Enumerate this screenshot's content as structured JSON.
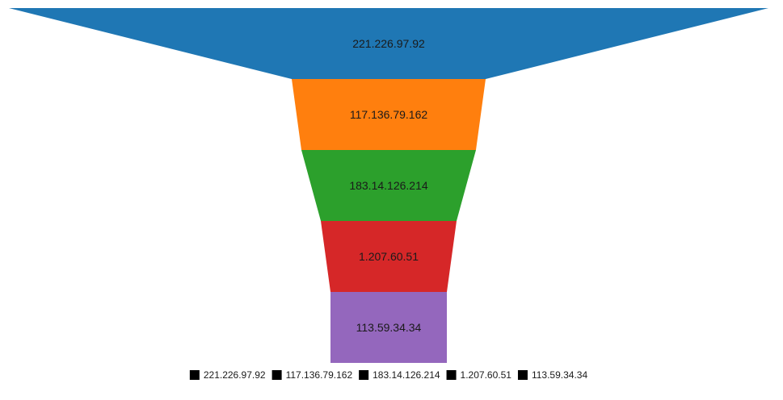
{
  "chart_data": {
    "type": "funnel",
    "stages": [
      {
        "label": "221.226.97.92",
        "color": "#1f77b4"
      },
      {
        "label": "117.136.79.162",
        "color": "#ff7f0e"
      },
      {
        "label": "183.14.126.214",
        "color": "#2ca02c"
      },
      {
        "label": "1.207.60.51",
        "color": "#d62728"
      },
      {
        "label": "113.59.34.34",
        "color": "#9467bd"
      }
    ],
    "legend": {
      "position": "bottom",
      "marker_color": "#000000",
      "items": [
        "221.226.97.92",
        "117.136.79.162",
        "183.14.126.214",
        "1.207.60.51",
        "113.59.34.34"
      ]
    }
  }
}
